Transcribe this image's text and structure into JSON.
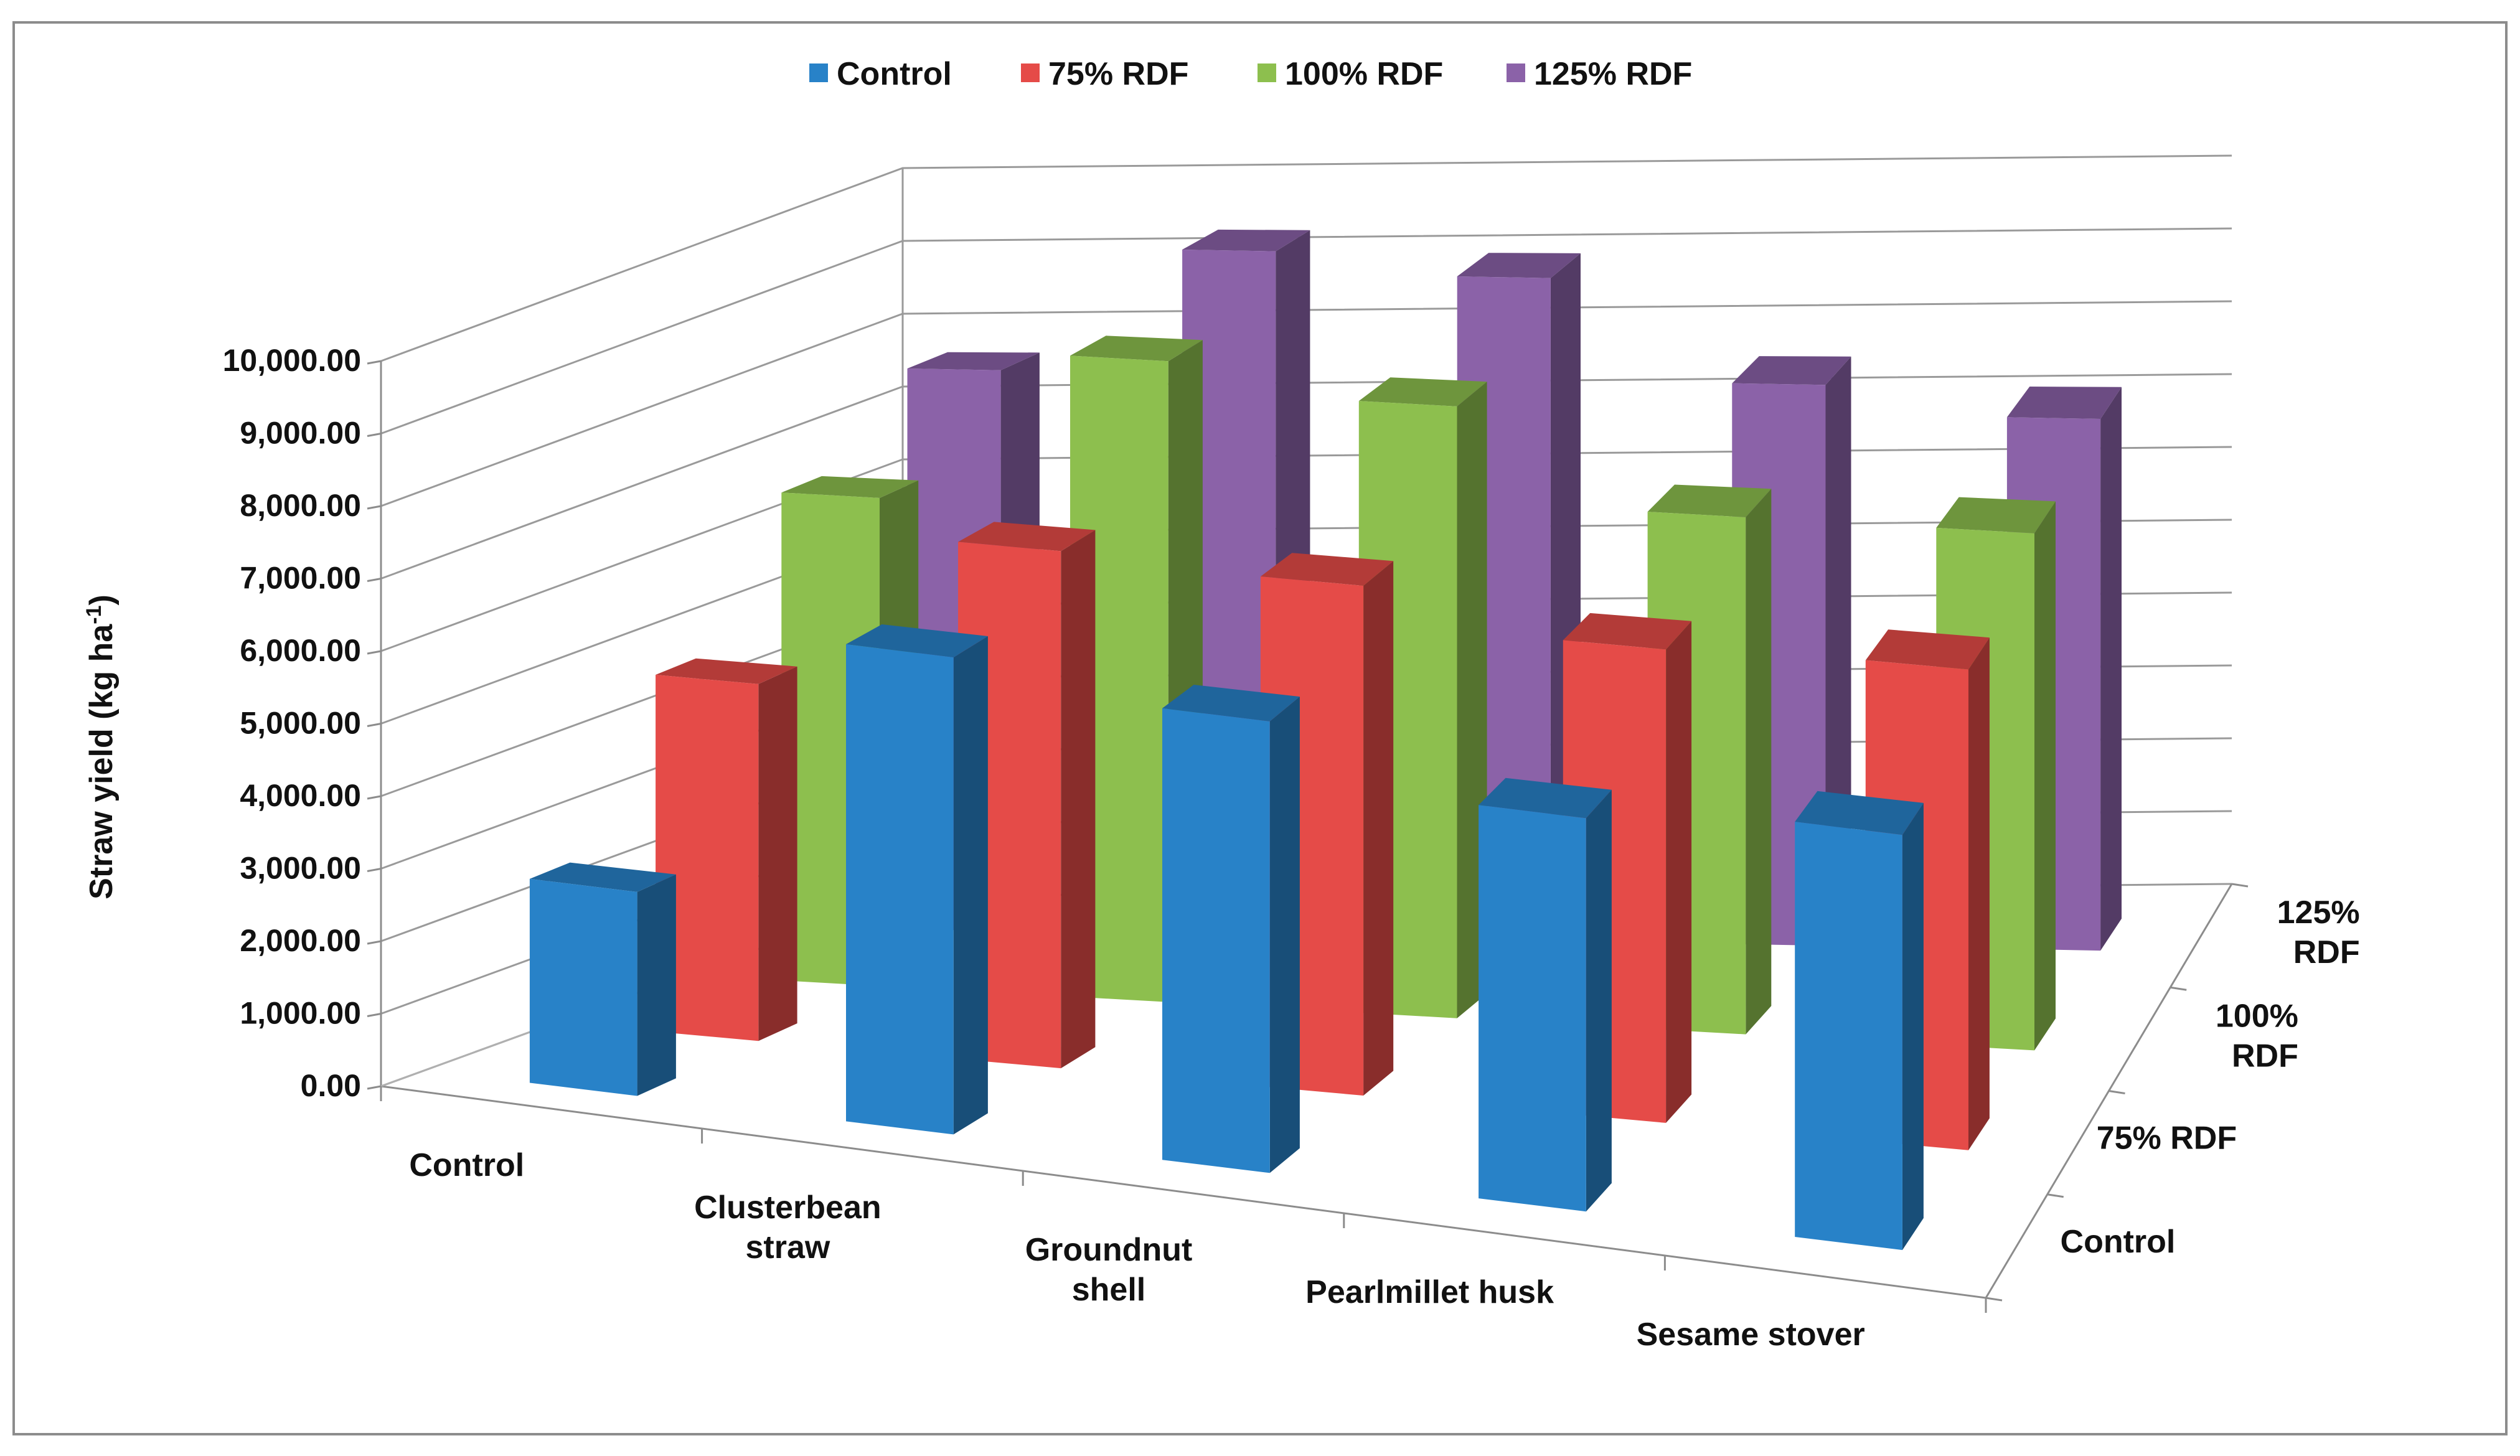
{
  "chart_data": {
    "type": "bar",
    "subtype": "3d-column",
    "title": "",
    "ylabel_main": "Straw yield (kg ha",
    "ylabel_sup": "-1",
    "ylabel_end": ")",
    "xlabel": "",
    "ylim": [
      0,
      10000
    ],
    "y_ticks": [
      "0.00",
      "1,000.00",
      "2,000.00",
      "3,000.00",
      "4,000.00",
      "5,000.00",
      "6,000.00",
      "7,000.00",
      "8,000.00",
      "9,000.00",
      "10,000.00"
    ],
    "categories": [
      "Control",
      "Clusterbean straw",
      "Groundnut shell",
      "Pearlmillet husk",
      "Sesame stover"
    ],
    "category_labels": [
      [
        "Control"
      ],
      [
        "Clusterbean",
        "straw"
      ],
      [
        "Groundnut",
        "shell"
      ],
      [
        "Pearlmillet husk"
      ],
      [
        "Sesame stover"
      ]
    ],
    "depth_labels": [
      [
        "Control"
      ],
      [
        "75% RDF"
      ],
      [
        "100%",
        "RDF"
      ],
      [
        "125%",
        "RDF"
      ]
    ],
    "legend_position": "top",
    "series": [
      {
        "name": "Control",
        "color": "#2882c8",
        "values": [
          2800,
          6550,
          6200,
          5400,
          5700
        ]
      },
      {
        "name": "75% RDF",
        "color": "#e54b48",
        "values": [
          4900,
          7100,
          7000,
          6500,
          6600
        ]
      },
      {
        "name": "100% RDF",
        "color": "#8dbf4e",
        "values": [
          6700,
          8800,
          8400,
          7100,
          7100
        ]
      },
      {
        "name": "125% RDF",
        "color": "#8b62a8",
        "values": [
          7700,
          9400,
          9100,
          7700,
          7300
        ]
      }
    ]
  }
}
